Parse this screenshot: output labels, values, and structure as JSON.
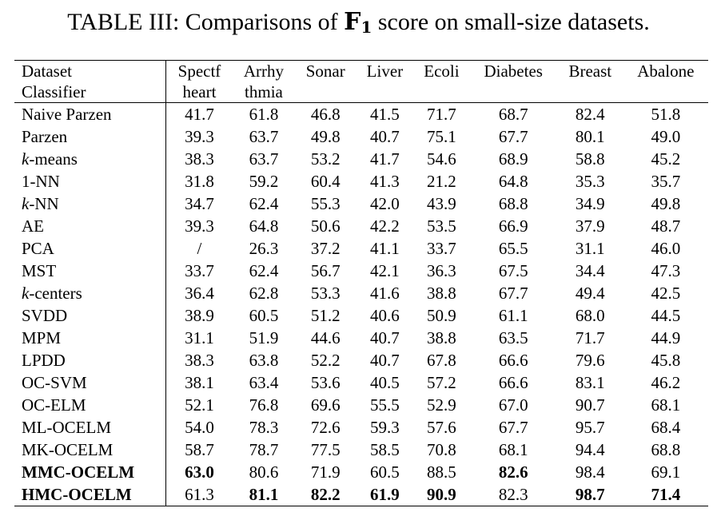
{
  "caption": {
    "prefix": "TABLE III: Comparisons of ",
    "metric_main": "F",
    "metric_sub": "1",
    "suffix": " score on small-size datasets."
  },
  "header": {
    "row_label_top": "Dataset",
    "row_label_bottom": "Classifier",
    "columns": [
      {
        "top": "Spectf",
        "bottom": "heart"
      },
      {
        "top": "Arrhy",
        "bottom": "thmia"
      },
      {
        "top": "Sonar",
        "bottom": ""
      },
      {
        "top": "Liver",
        "bottom": ""
      },
      {
        "top": "Ecoli",
        "bottom": ""
      },
      {
        "top": "Diabetes",
        "bottom": ""
      },
      {
        "top": "Breast",
        "bottom": ""
      },
      {
        "top": "Abalone",
        "bottom": ""
      }
    ]
  },
  "rows": [
    {
      "k": "",
      "name": "Naive Parzen",
      "bold": false,
      "values": [
        "41.7",
        "61.8",
        "46.8",
        "41.5",
        "71.7",
        "68.7",
        "82.4",
        "51.8"
      ],
      "bold_cells": []
    },
    {
      "k": "",
      "name": "Parzen",
      "bold": false,
      "values": [
        "39.3",
        "63.7",
        "49.8",
        "40.7",
        "75.1",
        "67.7",
        "80.1",
        "49.0"
      ],
      "bold_cells": []
    },
    {
      "k": "k",
      "name": "-means",
      "bold": false,
      "values": [
        "38.3",
        "63.7",
        "53.2",
        "41.7",
        "54.6",
        "68.9",
        "58.8",
        "45.2"
      ],
      "bold_cells": []
    },
    {
      "k": "",
      "name": "1-NN",
      "bold": false,
      "values": [
        "31.8",
        "59.2",
        "60.4",
        "41.3",
        "21.2",
        "64.8",
        "35.3",
        "35.7"
      ],
      "bold_cells": []
    },
    {
      "k": "k",
      "name": "-NN",
      "bold": false,
      "values": [
        "34.7",
        "62.4",
        "55.3",
        "42.0",
        "43.9",
        "68.8",
        "34.9",
        "49.8"
      ],
      "bold_cells": []
    },
    {
      "k": "",
      "name": "AE",
      "bold": false,
      "values": [
        "39.3",
        "64.8",
        "50.6",
        "42.2",
        "53.5",
        "66.9",
        "37.9",
        "48.7"
      ],
      "bold_cells": []
    },
    {
      "k": "",
      "name": "PCA",
      "bold": false,
      "values": [
        "/",
        "26.3",
        "37.2",
        "41.1",
        "33.7",
        "65.5",
        "31.1",
        "46.0"
      ],
      "bold_cells": []
    },
    {
      "k": "",
      "name": "MST",
      "bold": false,
      "values": [
        "33.7",
        "62.4",
        "56.7",
        "42.1",
        "36.3",
        "67.5",
        "34.4",
        "47.3"
      ],
      "bold_cells": []
    },
    {
      "k": "k",
      "name": "-centers",
      "bold": false,
      "values": [
        "36.4",
        "62.8",
        "53.3",
        "41.6",
        "38.8",
        "67.7",
        "49.4",
        "42.5"
      ],
      "bold_cells": []
    },
    {
      "k": "",
      "name": "SVDD",
      "bold": false,
      "values": [
        "38.9",
        "60.5",
        "51.2",
        "40.6",
        "50.9",
        "61.1",
        "68.0",
        "44.5"
      ],
      "bold_cells": []
    },
    {
      "k": "",
      "name": "MPM",
      "bold": false,
      "values": [
        "31.1",
        "51.9",
        "44.6",
        "40.7",
        "38.8",
        "63.5",
        "71.7",
        "44.9"
      ],
      "bold_cells": []
    },
    {
      "k": "",
      "name": "LPDD",
      "bold": false,
      "values": [
        "38.3",
        "63.8",
        "52.2",
        "40.7",
        "67.8",
        "66.6",
        "79.6",
        "45.8"
      ],
      "bold_cells": []
    },
    {
      "k": "",
      "name": "OC-SVM",
      "bold": false,
      "values": [
        "38.1",
        "63.4",
        "53.6",
        "40.5",
        "57.2",
        "66.6",
        "83.1",
        "46.2"
      ],
      "bold_cells": []
    },
    {
      "k": "",
      "name": "OC-ELM",
      "bold": false,
      "values": [
        "52.1",
        "76.8",
        "69.6",
        "55.5",
        "52.9",
        "67.0",
        "90.7",
        "68.1"
      ],
      "bold_cells": []
    },
    {
      "k": "",
      "name": "ML-OCELM",
      "bold": false,
      "values": [
        "54.0",
        "78.3",
        "72.6",
        "59.3",
        "57.6",
        "67.7",
        "95.7",
        "68.4"
      ],
      "bold_cells": []
    },
    {
      "k": "",
      "name": "MK-OCELM",
      "bold": false,
      "values": [
        "58.7",
        "78.7",
        "77.5",
        "58.5",
        "70.8",
        "68.1",
        "94.4",
        "68.8"
      ],
      "bold_cells": []
    },
    {
      "k": "",
      "name": "MMC-OCELM",
      "bold": true,
      "values": [
        "63.0",
        "80.6",
        "71.9",
        "60.5",
        "88.5",
        "82.6",
        "98.4",
        "69.1"
      ],
      "bold_cells": [
        0,
        5
      ]
    },
    {
      "k": "",
      "name": "HMC-OCELM",
      "bold": true,
      "values": [
        "61.3",
        "81.1",
        "82.2",
        "61.9",
        "90.9",
        "82.3",
        "98.7",
        "71.4"
      ],
      "bold_cells": [
        1,
        2,
        3,
        4,
        6,
        7
      ]
    }
  ]
}
